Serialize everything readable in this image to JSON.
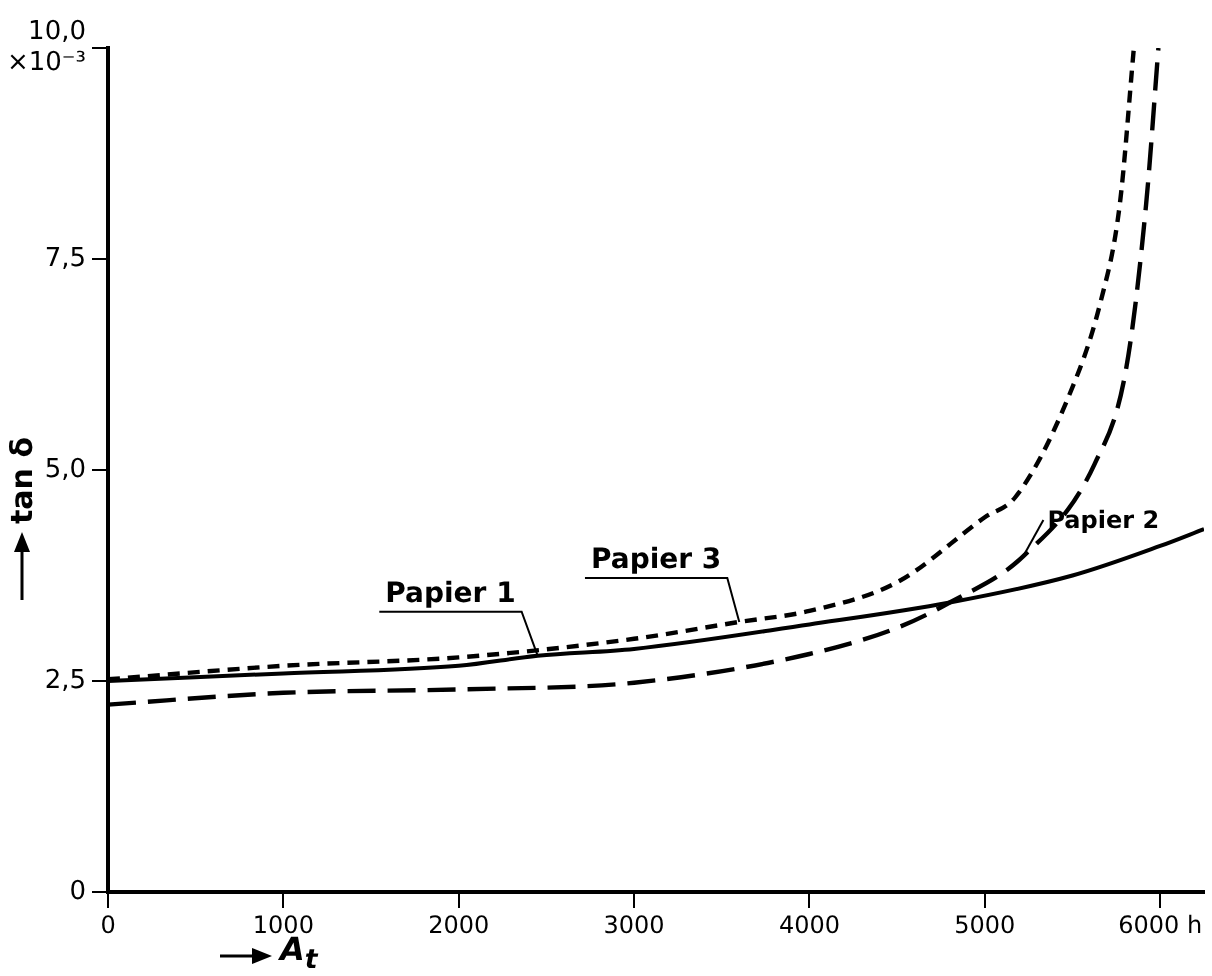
{
  "chart_data": {
    "type": "line",
    "xlabel": "A$_{t}$",
    "ylabel": "tan δ",
    "xlim": [
      0,
      6250
    ],
    "xticks": [
      0,
      1000,
      2000,
      3000,
      4000,
      5000,
      {
        "value": 6000,
        "label": "6000 h"
      }
    ],
    "ylim": [
      0,
      10
    ],
    "yticks": [
      {
        "value": 0,
        "label": "0"
      },
      {
        "value": 2.5,
        "label": "2,5"
      },
      {
        "value": 5,
        "label": "5,0"
      },
      {
        "value": 7.5,
        "label": "7,5"
      },
      {
        "value": 10,
        "label": "10,0\n×10⁻³"
      }
    ],
    "grid": false,
    "legend": false,
    "marker": "none",
    "series": [
      {
        "name": "Papier 1",
        "color": "#000000",
        "line_style": "solid",
        "x": [
          0,
          1000,
          2000,
          2450,
          3000,
          4000,
          4800,
          5500,
          6000,
          6250
        ],
        "values": [
          2.5,
          2.59,
          2.68,
          2.8,
          2.88,
          3.17,
          3.43,
          3.75,
          4.1,
          4.3
        ]
      },
      {
        "name": "Papier 2",
        "color": "#000000",
        "line_style": "dashed",
        "x": [
          0,
          1000,
          2000,
          3000,
          4000,
          4500,
          4800,
          5220,
          5626,
          5806,
          5920,
          5990
        ],
        "values": [
          2.22,
          2.36,
          2.4,
          2.48,
          2.82,
          3.13,
          3.43,
          3.98,
          5.07,
          6.2,
          8.15,
          10
        ]
      },
      {
        "name": "Papier 3",
        "color": "#000000",
        "line_style": "dashed",
        "x": [
          0,
          1000,
          2000,
          3000,
          3600,
          4000,
          4500,
          5000,
          5175,
          5470,
          5660,
          5770,
          5850
        ],
        "values": [
          2.52,
          2.68,
          2.78,
          3.0,
          3.2,
          3.33,
          3.67,
          4.44,
          4.68,
          5.83,
          6.99,
          8.15,
          10
        ]
      }
    ]
  }
}
